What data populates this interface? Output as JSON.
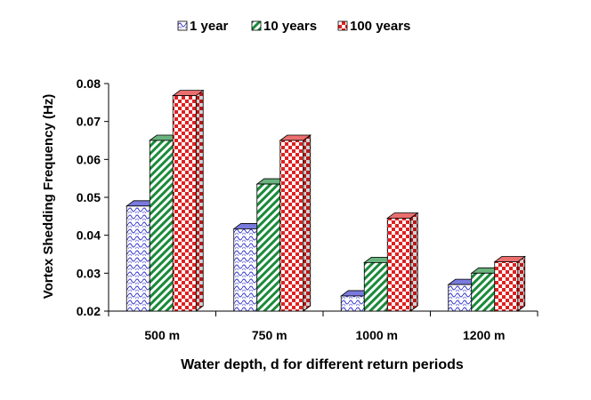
{
  "chart_data": {
    "type": "bar",
    "style": "3d-clustered",
    "categories": [
      "500 m",
      "750 m",
      "1000 m",
      "1200 m"
    ],
    "series": [
      {
        "name": "1 year",
        "values": [
          0.0477,
          0.0417,
          0.024,
          0.027
        ],
        "color": "#3333cc",
        "pattern": "wave"
      },
      {
        "name": "10 years",
        "values": [
          0.065,
          0.0535,
          0.0328,
          0.03
        ],
        "color": "#1a8a3a",
        "pattern": "diagonal"
      },
      {
        "name": "100 years",
        "values": [
          0.0768,
          0.065,
          0.0445,
          0.033
        ],
        "color": "#e02020",
        "pattern": "checker"
      }
    ],
    "title": "",
    "xlabel": "Water depth, d for different return periods",
    "ylabel": "Vortex Shedding Frequency (Hz)",
    "ylim": [
      0.02,
      0.08
    ],
    "yticks": [
      "0.02",
      "0.03",
      "0.04",
      "0.05",
      "0.06",
      "0.07",
      "0.08"
    ],
    "legend_position": "top",
    "grid": false
  }
}
